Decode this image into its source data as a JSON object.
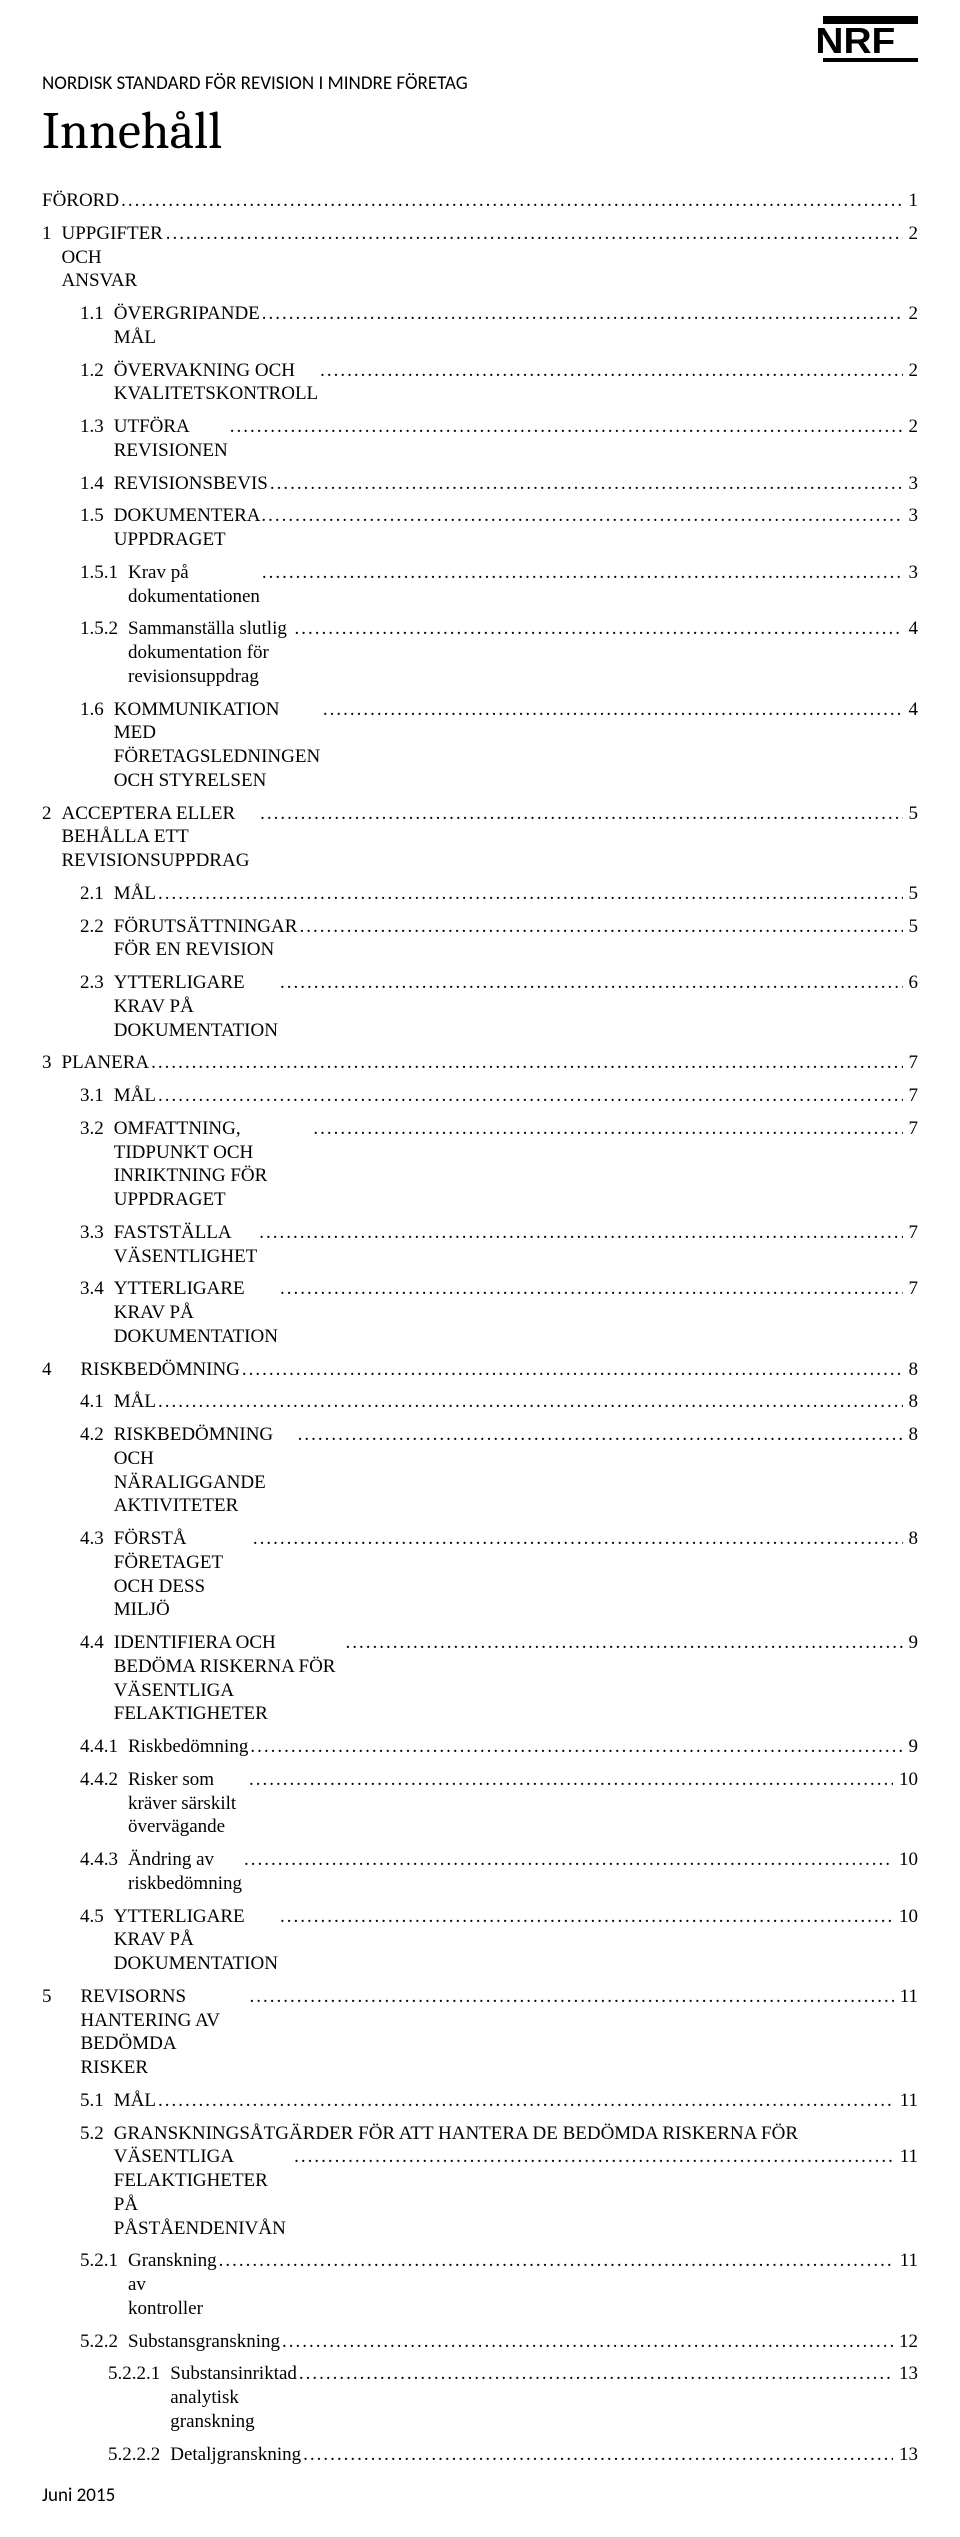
{
  "logo_text": "NRF",
  "header": "NORDISK STANDARD FÖR REVISION I MINDRE FÖRETAG",
  "title": "Innehåll",
  "footer": "Juni 2015",
  "leader_fill": ".................................................................................................................................................................................................................................................",
  "toc": [
    {
      "indent": 0,
      "num": "",
      "label": "FÖRORD",
      "page": "1",
      "smallcaps": false
    },
    {
      "indent": 0,
      "num": "1",
      "label": "UPPGIFTER OCH ANSVAR",
      "page": "2",
      "smallcaps": false
    },
    {
      "indent": 1,
      "num": "1.1",
      "label": "ÖVERGRIPANDE MÅL",
      "page": "2",
      "smallcaps": true
    },
    {
      "indent": 1,
      "num": "1.2",
      "label": "ÖVERVAKNING OCH KVALITETSKONTROLL",
      "page": "2",
      "smallcaps": true
    },
    {
      "indent": 1,
      "num": "1.3",
      "label": "UTFÖRA REVISIONEN",
      "page": "2",
      "smallcaps": true
    },
    {
      "indent": 1,
      "num": "1.4",
      "label": "REVISIONSBEVIS",
      "page": "3",
      "smallcaps": true
    },
    {
      "indent": 1,
      "num": "1.5",
      "label": "DOKUMENTERA UPPDRAGET",
      "page": "3",
      "smallcaps": true
    },
    {
      "indent": 2,
      "num": "1.5.1",
      "label": "Krav på dokumentationen",
      "page": "3",
      "smallcaps": false
    },
    {
      "indent": 2,
      "num": "1.5.2",
      "label": "Sammanställa slutlig dokumentation för revisionsuppdrag",
      "page": "4",
      "smallcaps": false
    },
    {
      "indent": 1,
      "num": "1.6",
      "label": "KOMMUNIKATION MED FÖRETAGSLEDNINGEN OCH STYRELSEN",
      "page": "4",
      "smallcaps": true
    },
    {
      "indent": 0,
      "num": "2",
      "label": "ACCEPTERA ELLER BEHÅLLA ETT REVISIONSUPPDRAG",
      "page": "5",
      "smallcaps": false
    },
    {
      "indent": 1,
      "num": "2.1",
      "label": "MÅL",
      "page": "5",
      "smallcaps": true
    },
    {
      "indent": 1,
      "num": "2.2",
      "label": "FÖRUTSÄTTNINGAR FÖR EN REVISION",
      "page": "5",
      "smallcaps": true
    },
    {
      "indent": 1,
      "num": "2.3",
      "label": "YTTERLIGARE KRAV PÅ DOKUMENTATION",
      "page": "6",
      "smallcaps": true
    },
    {
      "indent": 0,
      "num": "3",
      "label": "PLANERA",
      "page": "7",
      "smallcaps": false
    },
    {
      "indent": 1,
      "num": "3.1",
      "label": "MÅL",
      "page": "7",
      "smallcaps": true
    },
    {
      "indent": 1,
      "num": "3.2",
      "label": "OMFATTNING, TIDPUNKT OCH INRIKTNING FÖR UPPDRAGET",
      "page": "7",
      "smallcaps": true
    },
    {
      "indent": 1,
      "num": "3.3",
      "label": "FASTSTÄLLA VÄSENTLIGHET",
      "page": "7",
      "smallcaps": false
    },
    {
      "indent": 1,
      "num": "3.4",
      "label": "YTTERLIGARE KRAV PÅ DOKUMENTATION",
      "page": "7",
      "smallcaps": false
    },
    {
      "indent": 0,
      "num": "4",
      "label": "RISKBEDÖMNING",
      "page": "8",
      "smallcaps": false,
      "numpad": true
    },
    {
      "indent": 1,
      "num": "4.1",
      "label": "MÅL",
      "page": "8",
      "smallcaps": true
    },
    {
      "indent": 1,
      "num": "4.2",
      "label": "RISKBEDÖMNING OCH NÄRALIGGANDE AKTIVITETER",
      "page": "8",
      "smallcaps": false
    },
    {
      "indent": 1,
      "num": "4.3",
      "label": "FÖRSTÅ FÖRETAGET OCH DESS MILJÖ",
      "page": "8",
      "smallcaps": false
    },
    {
      "indent": 1,
      "num": "4.4",
      "label": "IDENTIFIERA OCH BEDÖMA RISKERNA FÖR VÄSENTLIGA FELAKTIGHETER",
      "page": "9",
      "smallcaps": false
    },
    {
      "indent": 2,
      "num": "4.4.1",
      "label": "Riskbedömning",
      "page": "9",
      "smallcaps": false
    },
    {
      "indent": 2,
      "num": "4.4.2",
      "label": "Risker som kräver särskilt övervägande",
      "page": "10",
      "smallcaps": false
    },
    {
      "indent": 2,
      "num": "4.4.3",
      "label": "Ändring av riskbedömning",
      "page": "10",
      "smallcaps": false
    },
    {
      "indent": 1,
      "num": "4.5",
      "label": "YTTERLIGARE KRAV PÅ DOKUMENTATION",
      "page": "10",
      "smallcaps": false
    },
    {
      "indent": 0,
      "num": "5",
      "label": "REVISORNS HANTERING AV BEDÖMDA RISKER",
      "page": "11",
      "smallcaps": false,
      "numpad": true
    },
    {
      "indent": 1,
      "num": "5.1",
      "label": "MÅL",
      "page": "11",
      "smallcaps": true
    },
    {
      "indent": 1,
      "num": "5.2",
      "label": "GRANSKNINGSÅTGÄRDER FÖR ATT HANTERA DE BEDÖMDA RISKERNA FÖR",
      "label2": "VÄSENTLIGA FELAKTIGHETER PÅ PÅSTÅENDENIVÅN",
      "page": "11",
      "smallcaps": false,
      "wrap": true
    },
    {
      "indent": 2,
      "num": "5.2.1",
      "label": "Granskning av kontroller",
      "page": "11",
      "smallcaps": false
    },
    {
      "indent": 2,
      "num": "5.2.2",
      "label": "Substansgranskning",
      "page": "12",
      "smallcaps": false
    },
    {
      "indent": 3,
      "num": "5.2.2.1",
      "label": "Substansinriktad analytisk granskning",
      "page": "13",
      "smallcaps": false
    },
    {
      "indent": 3,
      "num": "5.2.2.2",
      "label": "Detaljgranskning",
      "page": "13",
      "smallcaps": false
    }
  ]
}
